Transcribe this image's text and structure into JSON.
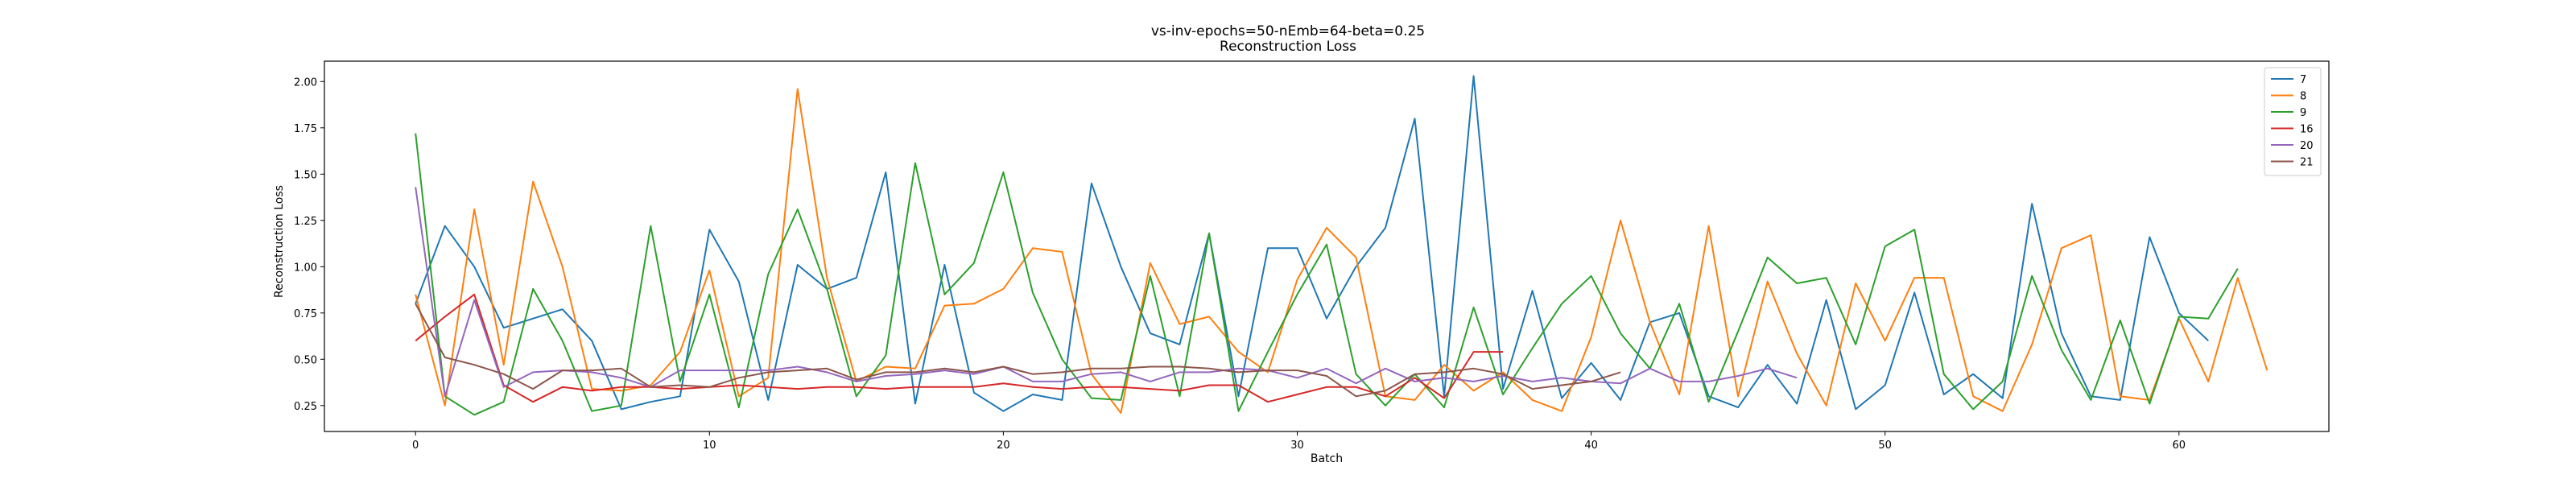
{
  "chart_data": {
    "type": "line",
    "title": "vs-inv-epochs=50-nEmb=64-beta=0.25",
    "subtitle": "Reconstruction Loss",
    "xlabel": "Batch",
    "ylabel": "Reconstruction Loss",
    "xlim": [
      -3.1,
      65.1
    ],
    "ylim": [
      0.11,
      2.11
    ],
    "xticks": [
      0,
      10,
      20,
      30,
      40,
      50,
      60
    ],
    "yticks": [
      0.25,
      0.5,
      0.75,
      1.0,
      1.25,
      1.5,
      1.75,
      2.0
    ],
    "ytick_labels": [
      "0.25",
      "0.50",
      "0.75",
      "1.00",
      "1.25",
      "1.50",
      "1.75",
      "2.00"
    ],
    "grid": false,
    "legend_position": "top-right",
    "series": [
      {
        "name": "7",
        "color": "#1f77b4",
        "values": [
          0.8,
          1.22,
          1.0,
          0.67,
          0.72,
          0.77,
          0.6,
          0.23,
          0.27,
          0.3,
          1.2,
          0.92,
          0.28,
          1.01,
          0.88,
          0.94,
          1.51,
          0.26,
          1.01,
          0.32,
          0.22,
          0.31,
          0.28,
          1.45,
          1.0,
          0.64,
          0.58,
          1.18,
          0.3,
          1.1,
          1.1,
          0.72,
          1.0,
          1.21,
          1.8,
          0.3,
          2.03,
          0.34,
          0.87,
          0.29,
          0.48,
          0.28,
          0.7,
          0.75,
          0.3,
          0.24,
          0.47,
          0.26,
          0.82,
          0.23,
          0.36,
          0.86,
          0.31,
          0.42,
          0.29,
          1.34,
          0.64,
          0.3,
          0.28,
          1.16,
          0.75,
          0.6
        ]
      },
      {
        "name": "8",
        "color": "#ff7f0e",
        "values": [
          0.85,
          0.25,
          1.31,
          0.47,
          1.46,
          1.0,
          0.34,
          0.33,
          0.36,
          0.54,
          0.98,
          0.3,
          0.4,
          1.96,
          0.94,
          0.38,
          0.46,
          0.45,
          0.79,
          0.8,
          0.88,
          1.1,
          1.08,
          0.42,
          0.21,
          1.02,
          0.69,
          0.73,
          0.54,
          0.43,
          0.93,
          1.21,
          1.05,
          0.3,
          0.28,
          0.47,
          0.33,
          0.43,
          0.28,
          0.22,
          0.62,
          1.25,
          0.7,
          0.31,
          1.22,
          0.3,
          0.92,
          0.53,
          0.25,
          0.91,
          0.6,
          0.94,
          0.94,
          0.3,
          0.22,
          0.58,
          1.1,
          1.17,
          0.3,
          0.28,
          0.72,
          0.38,
          0.94,
          0.44
        ]
      },
      {
        "name": "9",
        "color": "#2ca02c",
        "values": [
          1.72,
          0.3,
          0.2,
          0.27,
          0.88,
          0.6,
          0.22,
          0.25,
          1.22,
          0.38,
          0.85,
          0.24,
          0.96,
          1.31,
          0.88,
          0.3,
          0.52,
          1.56,
          0.85,
          1.02,
          1.51,
          0.86,
          0.5,
          0.29,
          0.28,
          0.95,
          0.3,
          1.18,
          0.22,
          0.54,
          0.85,
          1.12,
          0.42,
          0.25,
          0.42,
          0.24,
          0.78,
          0.31,
          0.56,
          0.8,
          0.95,
          0.64,
          0.45,
          0.8,
          0.27,
          0.65,
          1.05,
          0.91,
          0.94,
          0.58,
          1.11,
          1.2,
          0.42,
          0.23,
          0.38,
          0.95,
          0.55,
          0.28,
          0.71,
          0.26,
          0.73,
          0.72,
          0.99
        ]
      },
      {
        "name": "16",
        "color": "#d62728",
        "values": [
          0.6,
          0.73,
          0.85,
          0.36,
          0.27,
          0.35,
          0.33,
          0.35,
          0.35,
          0.34,
          0.35,
          0.36,
          0.35,
          0.34,
          0.35,
          0.35,
          0.34,
          0.35,
          0.35,
          0.35,
          0.37,
          0.35,
          0.34,
          0.35,
          0.35,
          0.34,
          0.33,
          0.36,
          0.36,
          0.27,
          0.31,
          0.35,
          0.35,
          0.3,
          0.4,
          0.29,
          0.54,
          0.54
        ]
      },
      {
        "name": "20",
        "color": "#9467bd",
        "values": [
          1.43,
          0.3,
          0.82,
          0.35,
          0.43,
          0.44,
          0.43,
          0.4,
          0.35,
          0.44,
          0.44,
          0.44,
          0.44,
          0.46,
          0.43,
          0.38,
          0.41,
          0.42,
          0.44,
          0.42,
          0.46,
          0.38,
          0.38,
          0.42,
          0.43,
          0.38,
          0.43,
          0.43,
          0.45,
          0.44,
          0.4,
          0.45,
          0.37,
          0.45,
          0.38,
          0.4,
          0.38,
          0.41,
          0.38,
          0.4,
          0.38,
          0.37,
          0.45,
          0.38,
          0.38,
          0.41,
          0.45,
          0.4
        ]
      },
      {
        "name": "21",
        "color": "#8c564b",
        "values": [
          0.8,
          0.51,
          0.47,
          0.42,
          0.34,
          0.44,
          0.44,
          0.45,
          0.35,
          0.36,
          0.35,
          0.4,
          0.43,
          0.44,
          0.45,
          0.39,
          0.43,
          0.43,
          0.45,
          0.43,
          0.46,
          0.42,
          0.43,
          0.45,
          0.45,
          0.46,
          0.46,
          0.45,
          0.43,
          0.44,
          0.44,
          0.41,
          0.3,
          0.33,
          0.42,
          0.43,
          0.45,
          0.42,
          0.34,
          0.36,
          0.38,
          0.43
        ]
      }
    ]
  }
}
